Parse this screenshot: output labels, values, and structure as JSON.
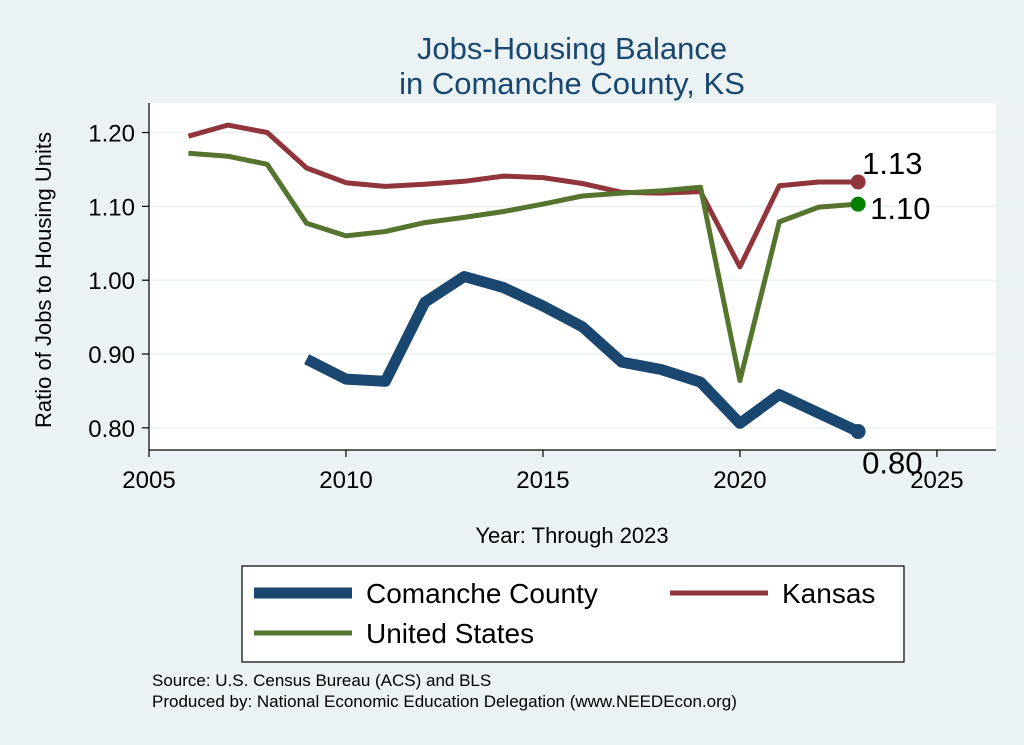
{
  "chart_data": {
    "type": "line",
    "title": [
      "Jobs-Housing Balance",
      "in Comanche County, KS"
    ],
    "xlabel": "Year: Through 2023",
    "ylabel": "Ratio of Jobs to Housing Units",
    "xlim": [
      2005,
      2026.5
    ],
    "ylim": [
      0.77,
      1.24
    ],
    "xticks": [
      2005,
      2010,
      2015,
      2020,
      2025
    ],
    "yticks": [
      0.8,
      0.9,
      1.0,
      1.1,
      1.2
    ],
    "ytick_labels": [
      "0.80",
      "0.90",
      "1.00",
      "1.10",
      "1.20"
    ],
    "grid": true,
    "legend_position": "bottom",
    "series": [
      {
        "key": "comanche",
        "name": "Comanche County",
        "color": "#1a476f",
        "end_marker_color": "#1a476f",
        "end_label": "0.80",
        "x": [
          2009,
          2010,
          2011,
          2012,
          2013,
          2014,
          2015,
          2016,
          2017,
          2018,
          2019,
          2020,
          2021,
          2022,
          2023
        ],
        "y": [
          0.893,
          0.866,
          0.863,
          0.97,
          1.005,
          0.99,
          0.965,
          0.937,
          0.889,
          0.879,
          0.862,
          0.806,
          0.845,
          0.82,
          0.795
        ]
      },
      {
        "key": "kansas",
        "name": "Kansas",
        "color": "#90353b",
        "end_marker_color": "#90353b",
        "end_label": "1.13",
        "x": [
          2006,
          2007,
          2008,
          2009,
          2010,
          2011,
          2012,
          2013,
          2014,
          2015,
          2016,
          2017,
          2018,
          2019,
          2020,
          2021,
          2022,
          2023
        ],
        "y": [
          1.195,
          1.21,
          1.2,
          1.152,
          1.132,
          1.127,
          1.13,
          1.134,
          1.141,
          1.139,
          1.131,
          1.119,
          1.118,
          1.12,
          1.018,
          1.128,
          1.133,
          1.133
        ]
      },
      {
        "key": "us",
        "name": "United States",
        "color": "#55752f",
        "end_marker_color": "#008000",
        "end_label": "1.10",
        "x": [
          2006,
          2007,
          2008,
          2009,
          2010,
          2011,
          2012,
          2013,
          2014,
          2015,
          2016,
          2017,
          2018,
          2019,
          2020,
          2021,
          2022,
          2023
        ],
        "y": [
          1.172,
          1.168,
          1.157,
          1.077,
          1.06,
          1.066,
          1.078,
          1.085,
          1.093,
          1.103,
          1.114,
          1.118,
          1.121,
          1.126,
          0.864,
          1.079,
          1.099,
          1.103
        ]
      }
    ],
    "source": [
      "Source: U.S. Census Bureau (ACS) and BLS",
      "Produced by: National Economic Education Delegation (www.NEEDEcon.org)"
    ]
  }
}
